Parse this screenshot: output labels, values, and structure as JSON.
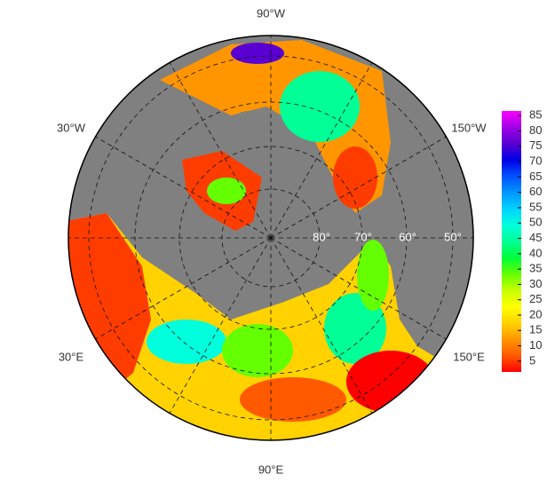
{
  "map": {
    "longitude_labels": [
      "90°W",
      "30°W",
      "150°W",
      "30°E",
      "150°E",
      "90°E"
    ],
    "latitude_labels": [
      "80°",
      "70°",
      "60°",
      "50°"
    ]
  },
  "colorbar": {
    "lim": [
      1.5,
      86.5
    ],
    "ticks": [
      5,
      10,
      15,
      20,
      25,
      30,
      35,
      40,
      45,
      50,
      55,
      60,
      65,
      70,
      75,
      80,
      85
    ],
    "colormap": [
      "#ff0000",
      "#ff5a00",
      "#ff9600",
      "#ffd200",
      "#ffff00",
      "#c8ff00",
      "#64ff00",
      "#00ff3c",
      "#00ff96",
      "#00ffdc",
      "#00d2ff",
      "#0096ff",
      "#0050ff",
      "#0000e6",
      "#5a00d2",
      "#a000e6",
      "#ff00ff"
    ]
  }
}
